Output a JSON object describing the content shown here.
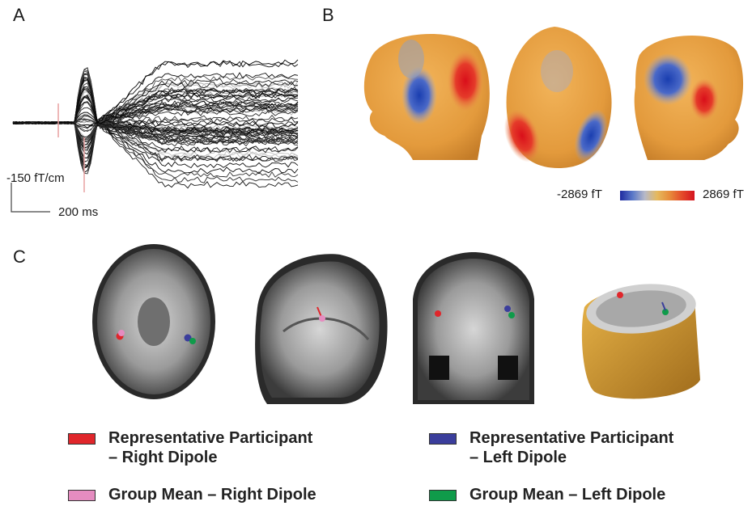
{
  "panels": {
    "a": "A",
    "b": "B",
    "c": "C"
  },
  "panel_a": {
    "amplitude_scale": "-150 fT/cm",
    "time_scale": "200 ms"
  },
  "panel_b": {
    "colorbar_min": "-2869 fT",
    "colorbar_max": "2869 fT"
  },
  "legend": [
    {
      "line1": "Representative Participant",
      "line2": "– Right Dipole",
      "color": "#e0262b"
    },
    {
      "line1": "Representative Participant",
      "line2": "– Left Dipole",
      "color": "#3b3e9c"
    },
    {
      "line1": "Group Mean – Right Dipole",
      "line2": "",
      "color": "#e58cc0"
    },
    {
      "line1": "Group Mean – Left Dipole",
      "line2": "",
      "color": "#0f9b4a"
    }
  ]
}
